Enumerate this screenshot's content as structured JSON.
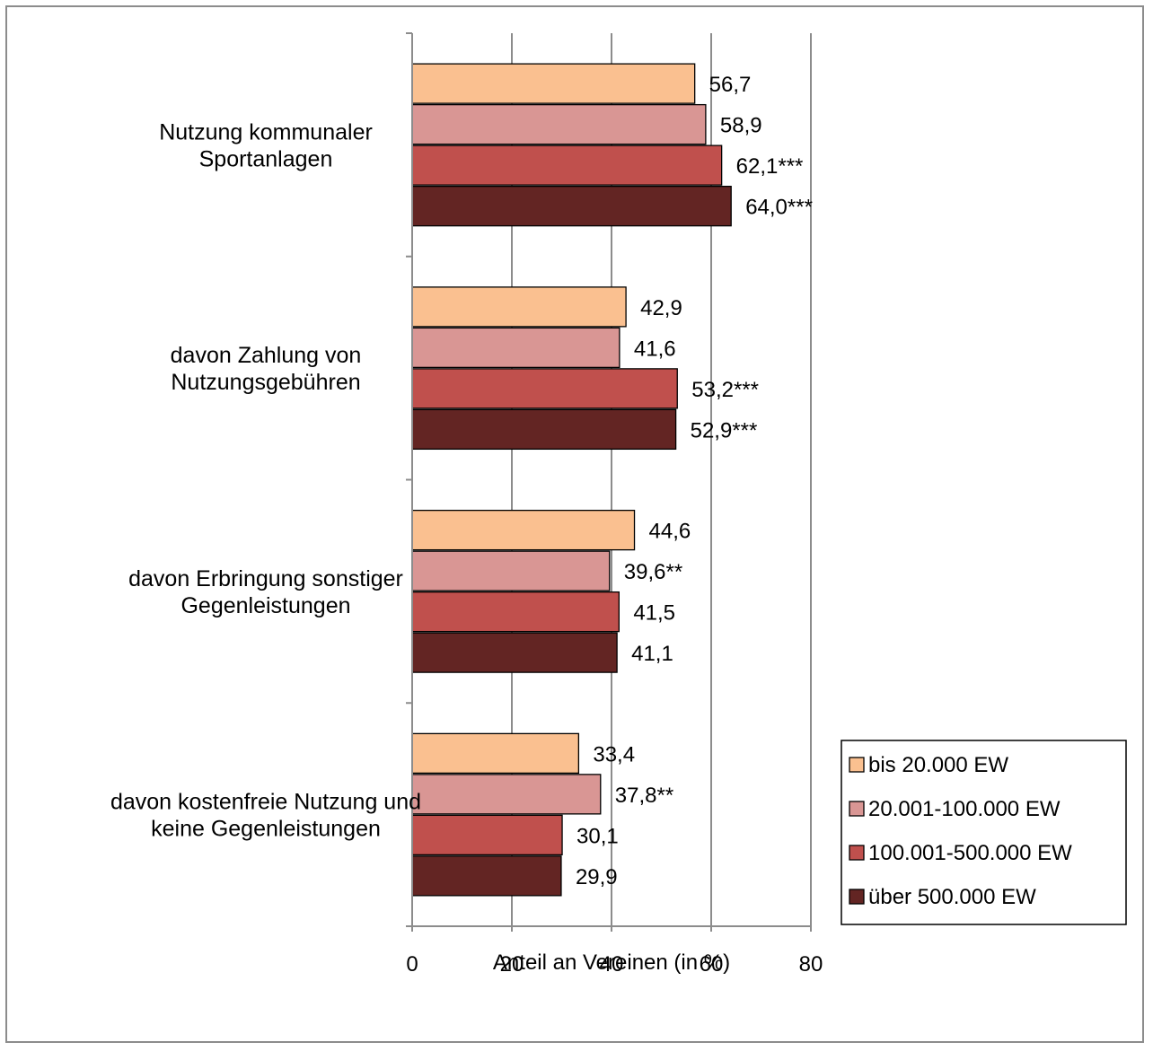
{
  "chart_data": {
    "type": "bar",
    "orientation": "horizontal",
    "categories": [
      [
        "Nutzung kommunaler",
        "Sportanlagen"
      ],
      [
        "davon Zahlung von",
        "Nutzungsgebühren"
      ],
      [
        "davon Erbringung sonstiger",
        "Gegenleistungen"
      ],
      [
        "davon kostenfreie Nutzung und",
        "keine Gegenleistungen"
      ]
    ],
    "series": [
      {
        "name": "bis 20.000 EW",
        "color": "#fac090",
        "values": [
          56.7,
          42.9,
          44.6,
          33.4
        ],
        "labels": [
          "56,7",
          "42,9",
          "44,6",
          "33,4"
        ]
      },
      {
        "name": "20.001-100.000 EW",
        "color": "#d99694",
        "values": [
          58.9,
          41.6,
          39.6,
          37.8
        ],
        "labels": [
          "58,9",
          "41,6",
          "39,6**",
          "37,8**"
        ]
      },
      {
        "name": "100.001-500.000 EW",
        "color": "#c0504d",
        "values": [
          62.1,
          53.2,
          41.5,
          30.1
        ],
        "labels": [
          "62,1***",
          "53,2***",
          "41,5",
          "30,1"
        ]
      },
      {
        "name": "über 500.000 EW",
        "color": "#632523",
        "values": [
          64.0,
          52.9,
          41.1,
          29.9
        ],
        "labels": [
          "64,0***",
          "52,9***",
          "41,1",
          "29,9"
        ]
      }
    ],
    "xlabel": "Anteil an Vereinen (in %)",
    "xlim": [
      0,
      80
    ],
    "xticks": [
      0,
      20,
      40,
      60,
      80
    ],
    "grid": true,
    "legend_position": "bottom-right"
  }
}
